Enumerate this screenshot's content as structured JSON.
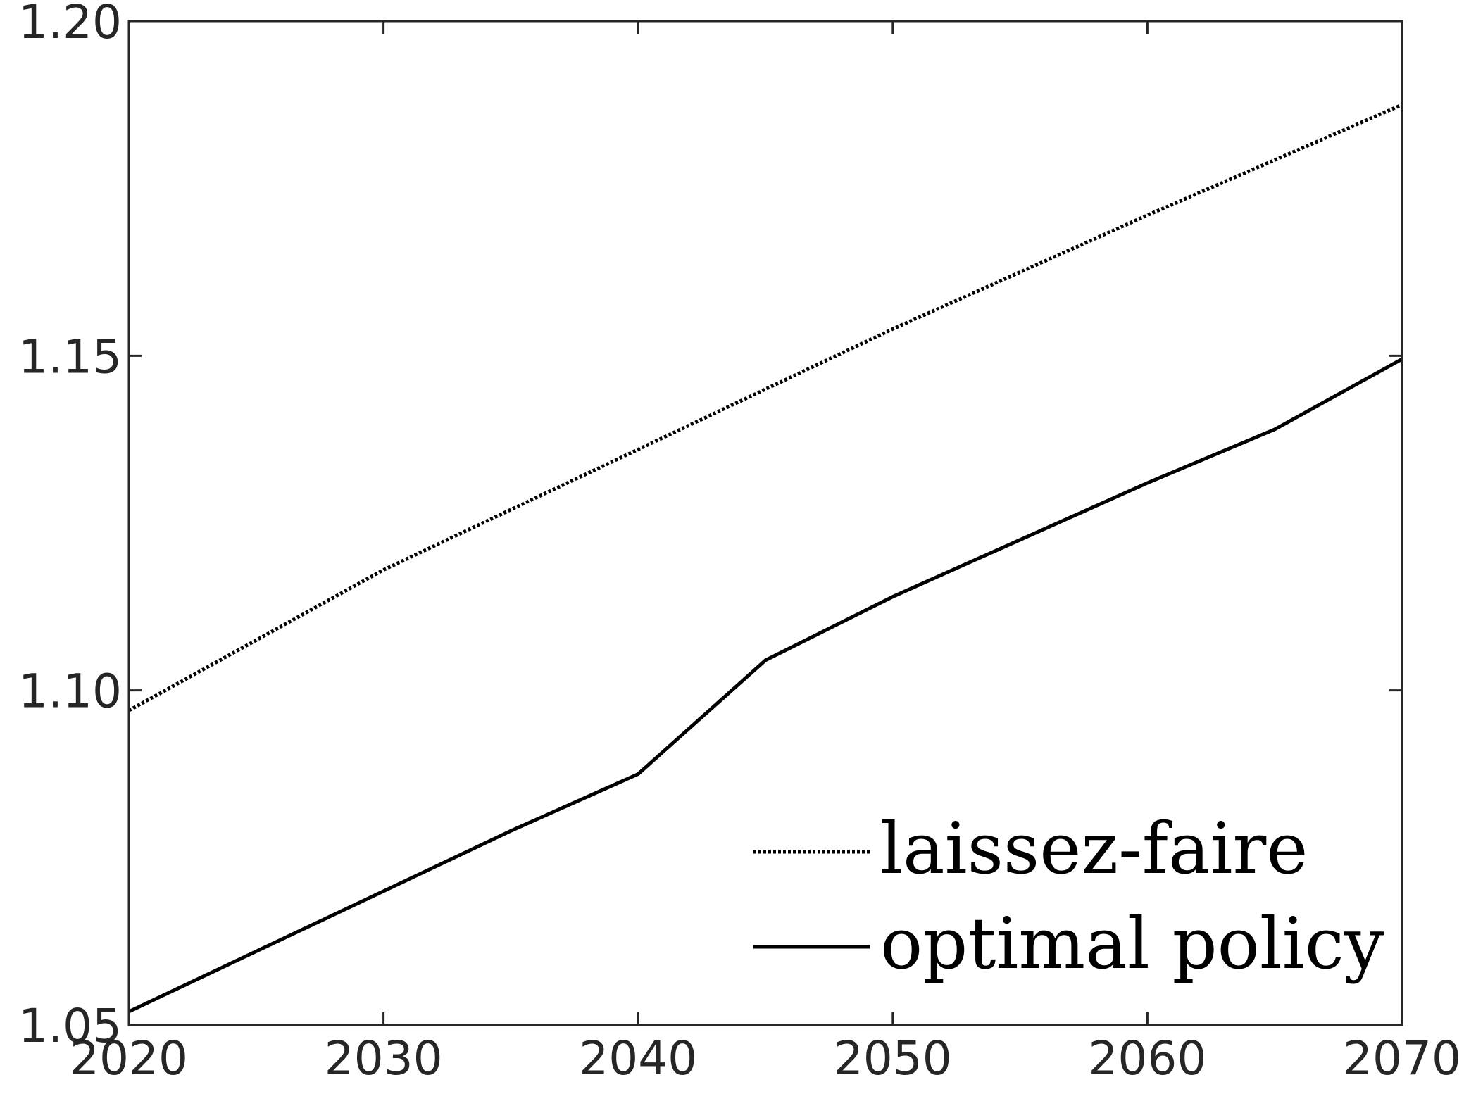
{
  "chart_data": {
    "type": "line",
    "title": "",
    "xlabel": "",
    "ylabel": "",
    "xlim": [
      2020,
      2070
    ],
    "ylim": [
      1.05,
      1.2
    ],
    "x_ticks": [
      2020,
      2030,
      2040,
      2050,
      2060,
      2070
    ],
    "x_tick_labels": [
      "2020",
      "2030",
      "2040",
      "2050",
      "2060",
      "2070"
    ],
    "y_ticks": [
      1.05,
      1.1,
      1.15,
      1.2
    ],
    "y_tick_labels": [
      "1.05",
      "1.10",
      "1.15",
      "1.20"
    ],
    "grid": false,
    "legend_position": "bottom-right",
    "colors": {
      "series": "#000000",
      "tick_text": "#262626",
      "axes": "#262626"
    },
    "series": [
      {
        "name": "laissez-faire",
        "line_style": "dotted",
        "x": [
          2020,
          2030,
          2040,
          2050,
          2060,
          2070
        ],
        "y": [
          1.097,
          1.118,
          1.136,
          1.154,
          1.171,
          1.1875
        ]
      },
      {
        "name": "optimal policy",
        "line_style": "solid",
        "x": [
          2020,
          2025,
          2030,
          2035,
          2040,
          2045,
          2050,
          2055,
          2060,
          2065,
          2070
        ],
        "y": [
          1.052,
          1.061,
          1.07,
          1.079,
          1.0875,
          1.1045,
          1.114,
          1.1225,
          1.131,
          1.139,
          1.1495
        ]
      }
    ]
  }
}
